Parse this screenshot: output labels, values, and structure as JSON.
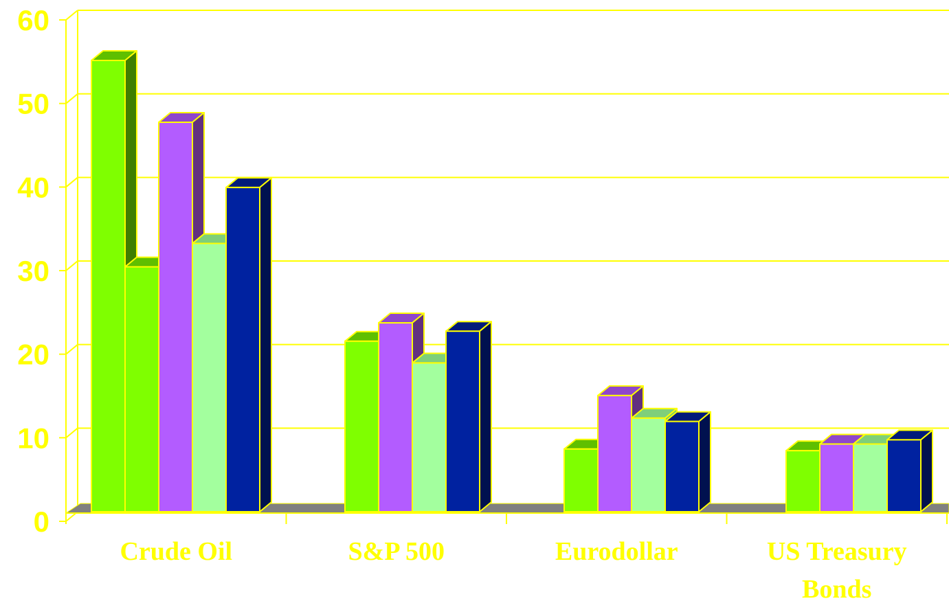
{
  "chart_data": {
    "type": "bar",
    "categories": [
      [
        "Crude Oil"
      ],
      [
        "S&P 500"
      ],
      [
        "Eurodollar"
      ],
      [
        "US Treasury",
        "Bonds"
      ]
    ],
    "series": [
      {
        "values": [
          54,
          20.4,
          7.5,
          7.3
        ]
      },
      {
        "values": [
          29.3,
          null,
          null,
          null
        ]
      },
      {
        "values": [
          46.6,
          22.6,
          13.9,
          8.1
        ]
      },
      {
        "values": [
          32.1,
          17.8,
          11.2,
          8.1
        ]
      },
      {
        "values": [
          38.8,
          21.6,
          10.8,
          8.6
        ]
      }
    ],
    "ylim": [
      0,
      60
    ],
    "yticks": [
      0,
      10,
      20,
      30,
      40,
      50,
      60
    ],
    "grid": true,
    "colors": {
      "series": [
        "#7fff00",
        "#7fff00",
        "#b35cff",
        "#a3ff9e",
        "#0022a0"
      ],
      "series_side": [
        "#3f7f00",
        "#3f7f00",
        "#62307f",
        "#74c770",
        "#00114f"
      ],
      "series_top": [
        "#5fbf00",
        "#5fbf00",
        "#8f46cc",
        "#7fcf7a",
        "#001a7a"
      ],
      "axis": "#ffff00",
      "floor": "#808080"
    }
  }
}
